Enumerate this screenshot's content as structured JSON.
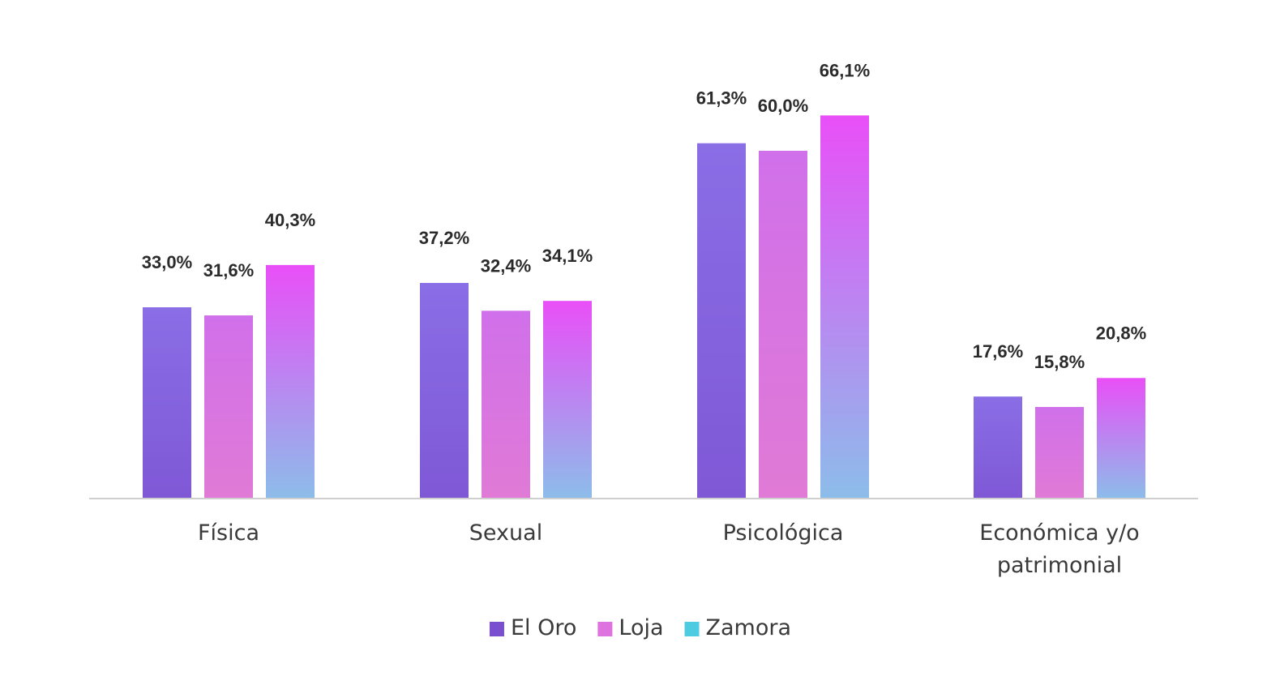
{
  "chart_data": {
    "type": "bar",
    "title": "",
    "xlabel": "",
    "ylabel": "",
    "ylim": [
      0,
      70
    ],
    "grid": false,
    "legend_position": "bottom-center",
    "categories": [
      [
        "Física"
      ],
      [
        "Sexual"
      ],
      [
        "Psicológica"
      ],
      [
        "Económica y/o",
        "patrimonial"
      ]
    ],
    "series": [
      {
        "name": "El Oro",
        "values": [
          33.0,
          37.2,
          61.3,
          17.6
        ],
        "labels": [
          "33,0%",
          "37,2%",
          "61,3%",
          "17,6%"
        ],
        "colors": {
          "top": "#8a6ee6",
          "bottom": "#7f58d6",
          "legend": "#7a4fcf"
        }
      },
      {
        "name": "Loja",
        "values": [
          31.6,
          32.4,
          60.0,
          15.8
        ],
        "labels": [
          "31,6%",
          "32,4%",
          "60,0%",
          "15,8%"
        ],
        "colors": {
          "top": "#d070ea",
          "bottom": "#e07ad6",
          "legend": "#de72df"
        }
      },
      {
        "name": "Zamora",
        "values": [
          40.3,
          34.1,
          66.1,
          20.8
        ],
        "labels": [
          "40,3%",
          "34,1%",
          "66,1%",
          "20,8%"
        ],
        "colors": {
          "top": "#e94ff7",
          "bottom": "#8cbdea",
          "legend": "#4dcbe0"
        }
      }
    ]
  }
}
